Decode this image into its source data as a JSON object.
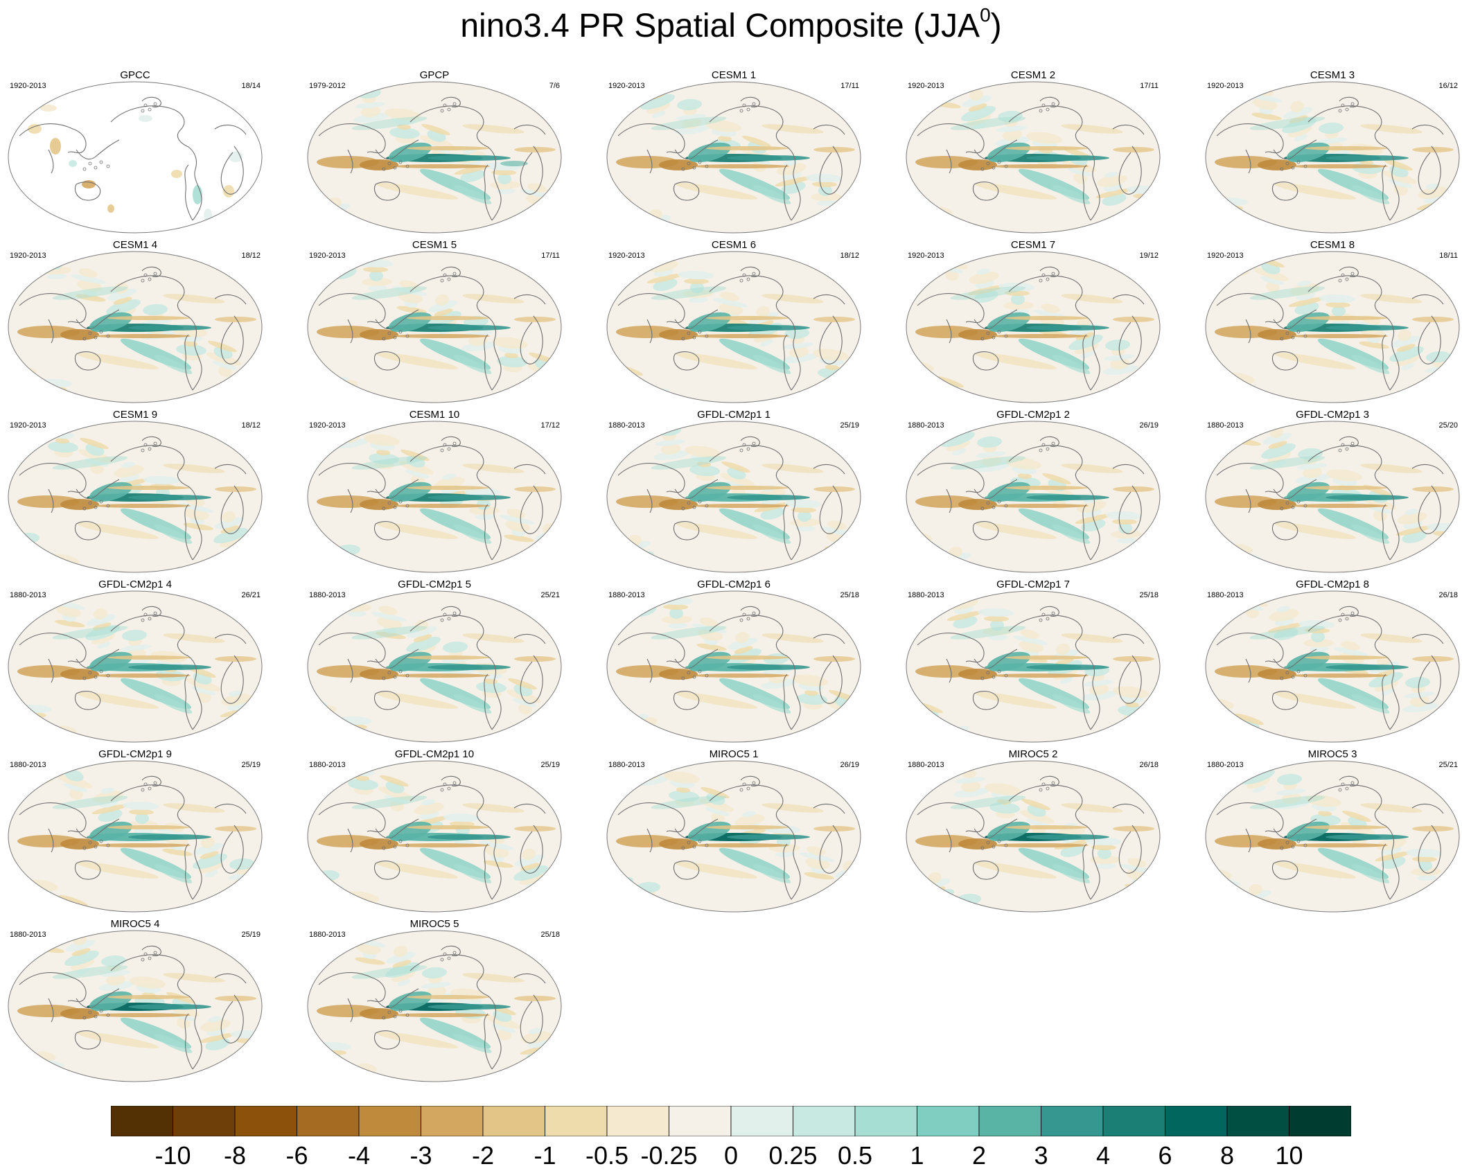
{
  "title": {
    "main": "nino3.4 PR Spatial Composite (JJA",
    "superscript": "0",
    "closing": ")"
  },
  "panels": [
    {
      "title": "GPCC",
      "years": "1920-2013",
      "count": "18/14",
      "pattern": "land"
    },
    {
      "title": "GPCP",
      "years": "1979-2012",
      "count": "7/6",
      "pattern": "obs"
    },
    {
      "title": "CESM1 1",
      "years": "1920-2013",
      "count": "17/11",
      "pattern": "model"
    },
    {
      "title": "CESM1 2",
      "years": "1920-2013",
      "count": "17/11",
      "pattern": "model"
    },
    {
      "title": "CESM1 3",
      "years": "1920-2013",
      "count": "16/12",
      "pattern": "model"
    },
    {
      "title": "CESM1 4",
      "years": "1920-2013",
      "count": "18/12",
      "pattern": "model"
    },
    {
      "title": "CESM1 5",
      "years": "1920-2013",
      "count": "17/11",
      "pattern": "model"
    },
    {
      "title": "CESM1 6",
      "years": "1920-2013",
      "count": "18/12",
      "pattern": "model"
    },
    {
      "title": "CESM1 7",
      "years": "1920-2013",
      "count": "19/12",
      "pattern": "model"
    },
    {
      "title": "CESM1 8",
      "years": "1920-2013",
      "count": "18/11",
      "pattern": "model"
    },
    {
      "title": "CESM1 9",
      "years": "1920-2013",
      "count": "18/12",
      "pattern": "model"
    },
    {
      "title": "CESM1 10",
      "years": "1920-2013",
      "count": "17/12",
      "pattern": "model"
    },
    {
      "title": "GFDL-CM2p1 1",
      "years": "1880-2013",
      "count": "25/19",
      "pattern": "gfdl"
    },
    {
      "title": "GFDL-CM2p1 2",
      "years": "1880-2013",
      "count": "26/19",
      "pattern": "gfdl"
    },
    {
      "title": "GFDL-CM2p1 3",
      "years": "1880-2013",
      "count": "25/20",
      "pattern": "gfdl"
    },
    {
      "title": "GFDL-CM2p1 4",
      "years": "1880-2013",
      "count": "26/21",
      "pattern": "gfdl"
    },
    {
      "title": "GFDL-CM2p1 5",
      "years": "1880-2013",
      "count": "25/21",
      "pattern": "gfdl"
    },
    {
      "title": "GFDL-CM2p1 6",
      "years": "1880-2013",
      "count": "25/18",
      "pattern": "gfdl"
    },
    {
      "title": "GFDL-CM2p1 7",
      "years": "1880-2013",
      "count": "25/18",
      "pattern": "gfdl"
    },
    {
      "title": "GFDL-CM2p1 8",
      "years": "1880-2013",
      "count": "26/18",
      "pattern": "gfdl"
    },
    {
      "title": "GFDL-CM2p1 9",
      "years": "1880-2013",
      "count": "25/19",
      "pattern": "gfdl"
    },
    {
      "title": "GFDL-CM2p1 10",
      "years": "1880-2013",
      "count": "25/19",
      "pattern": "gfdl"
    },
    {
      "title": "MIROC5 1",
      "years": "1880-2013",
      "count": "26/19",
      "pattern": "miroc"
    },
    {
      "title": "MIROC5 2",
      "years": "1880-2013",
      "count": "26/18",
      "pattern": "miroc"
    },
    {
      "title": "MIROC5 3",
      "years": "1880-2013",
      "count": "25/21",
      "pattern": "miroc"
    },
    {
      "title": "MIROC5 4",
      "years": "1880-2013",
      "count": "25/19",
      "pattern": "miroc"
    },
    {
      "title": "MIROC5 5",
      "years": "1880-2013",
      "count": "25/18",
      "pattern": "miroc"
    }
  ],
  "colorbar": {
    "labels": [
      "-10",
      "-8",
      "-6",
      "-4",
      "-3",
      "-2",
      "-1",
      "-0.5",
      "-0.25",
      "0",
      "0.25",
      "0.5",
      "1",
      "2",
      "3",
      "4",
      "6",
      "8",
      "10"
    ],
    "colors": [
      "#543005",
      "#6f3f0a",
      "#8c510a",
      "#a66b22",
      "#bf8a3c",
      "#d4a760",
      "#e3c588",
      "#efdcac",
      "#f5ead0",
      "#f5f1e8",
      "#e2f0ec",
      "#c7e9e1",
      "#a7ded3",
      "#80cdc1",
      "#5ab4a6",
      "#35978f",
      "#1c7f75",
      "#01665e",
      "#014e43",
      "#003c30"
    ]
  },
  "colors": {
    "coast": "#6e6e6e",
    "map_base": "#f5f1e8"
  }
}
